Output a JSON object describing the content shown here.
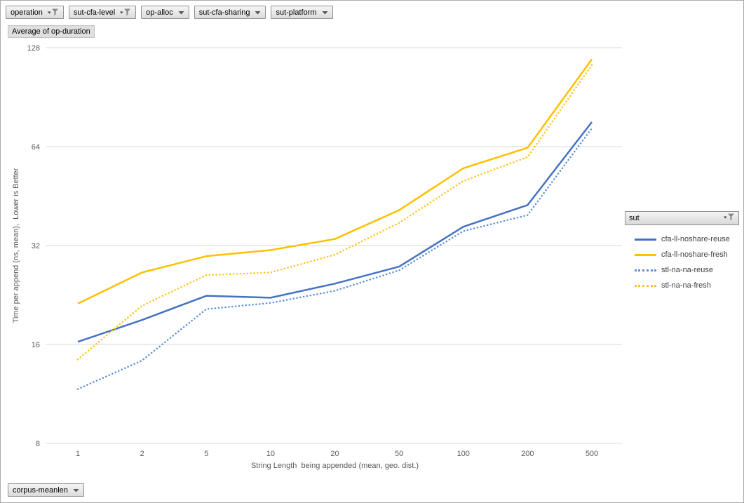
{
  "filter_buttons": [
    {
      "label": "operation",
      "filtered": true
    },
    {
      "label": "sut-cfa-level",
      "filtered": true
    },
    {
      "label": "op-alloc",
      "filtered": false
    },
    {
      "label": "sut-cfa-sharing",
      "filtered": false
    },
    {
      "label": "sut-platform",
      "filtered": false
    }
  ],
  "value_button": {
    "label": "Average of op-duration"
  },
  "bottom_button": {
    "label": "corpus-meanlen",
    "filtered": false
  },
  "legend": {
    "header": "sut",
    "filtered": true,
    "entries": [
      {
        "label": "cfa-ll-noshare-reuse",
        "color": "#4472C4",
        "style": "solid"
      },
      {
        "label": "cfa-ll-noshare-fresh",
        "color": "#FFC000",
        "style": "solid"
      },
      {
        "label": "stl-na-na-reuse",
        "color": "#5E8FD6",
        "style": "dotted"
      },
      {
        "label": "stl-na-na-fresh",
        "color": "#FFC424",
        "style": "dotted"
      }
    ]
  },
  "chart_data": {
    "type": "line",
    "title": "Average of op-duration",
    "xlabel": "String Length  being appended (mean, geo. dist.)",
    "ylabel": "Time per append (ns, mean),  Lower is Better",
    "x_scale": "category",
    "y_scale": "log2",
    "ylim": [
      8,
      128
    ],
    "y_ticks": [
      8,
      16,
      32,
      64,
      128
    ],
    "grid": "horizontal",
    "legend_position": "right",
    "categories": [
      "1",
      "2",
      "5",
      "10",
      "20",
      "50",
      "100",
      "200",
      "500"
    ],
    "series": [
      {
        "name": "cfa-ll-noshare-reuse",
        "style": "solid",
        "color": "#4472C4",
        "values": [
          16.3,
          19.0,
          22.5,
          22.2,
          24.5,
          27.6,
          36.5,
          42.5,
          76.0
        ]
      },
      {
        "name": "cfa-ll-noshare-fresh",
        "style": "solid",
        "color": "#FFC000",
        "values": [
          21.3,
          26.5,
          29.7,
          31.0,
          33.5,
          41.0,
          55.0,
          63.5,
          118.0
        ]
      },
      {
        "name": "stl-na-na-reuse",
        "style": "dotted",
        "color": "#5E8FD6",
        "values": [
          11.7,
          14.3,
          20.5,
          21.4,
          23.3,
          26.9,
          35.4,
          39.6,
          72.8
        ]
      },
      {
        "name": "stl-na-na-fresh",
        "style": "dotted",
        "color": "#FFC424",
        "values": [
          14.4,
          21.0,
          26.0,
          26.5,
          30.0,
          37.5,
          50.3,
          59.5,
          113.5
        ]
      }
    ],
    "tick_color": "#595959",
    "grid_color": "#D9D9D9"
  }
}
